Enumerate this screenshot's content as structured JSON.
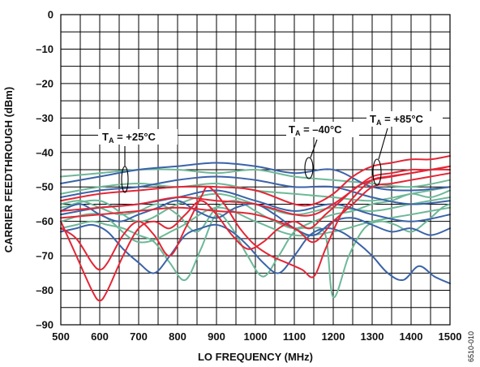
{
  "chart_data": {
    "type": "line",
    "title": "",
    "xlabel": "LO FREQUENCY (MHz)",
    "ylabel": "CARRIER FEEDTHROUGH (dBm)",
    "xlim": [
      500,
      1500
    ],
    "ylim": [
      -90,
      0
    ],
    "x_ticks": [
      500,
      600,
      700,
      800,
      900,
      1000,
      1100,
      1200,
      1300,
      1400,
      1500
    ],
    "x_tick_labels": [
      "500",
      "600",
      "700",
      "800",
      "900",
      "1000",
      "1100",
      "1200",
      "1300",
      "1400",
      "1500"
    ],
    "y_ticks": [
      0,
      -10,
      -20,
      -30,
      -40,
      -50,
      -60,
      -70,
      -80,
      -90
    ],
    "y_tick_labels": [
      "0",
      "–10",
      "–20",
      "–30",
      "–40",
      "–50",
      "–60",
      "–70",
      "–80",
      "–90"
    ],
    "grid": true,
    "series": [
      {
        "name": "TA = +25°C",
        "color": "#6db898",
        "curves": [
          {
            "x": [
              500,
              600,
              700,
              800,
              900,
              1000,
              1100,
              1200,
              1300,
              1400,
              1500
            ],
            "y": [
              -47,
              -46,
              -45,
              -45,
              -46,
              -45,
              -47,
              -48,
              -49,
              -50,
              -48
            ]
          },
          {
            "x": [
              500,
              600,
              700,
              800,
              900,
              1000,
              1100,
              1200,
              1300,
              1400,
              1500
            ],
            "y": [
              -52,
              -50,
              -49,
              -50,
              -49,
              -51,
              -52,
              -53,
              -54,
              -52,
              -50
            ]
          },
          {
            "x": [
              500,
              600,
              700,
              800,
              900,
              1000,
              1100,
              1200,
              1300,
              1400,
              1500
            ],
            "y": [
              -56,
              -54,
              -60,
              -55,
              -52,
              -55,
              -58,
              -56,
              -57,
              -55,
              -53
            ]
          },
          {
            "x": [
              500,
              600,
              700,
              800,
              900,
              1000,
              1100,
              1200,
              1300,
              1400,
              1500
            ],
            "y": [
              -60,
              -58,
              -66,
              -62,
              -56,
              -60,
              -64,
              -63,
              -60,
              -58,
              -56
            ]
          },
          {
            "x": [
              500,
              540,
              580,
              620,
              660,
              700,
              740,
              780,
              820,
              860,
              900,
              940,
              980,
              1020,
              1060,
              1100,
              1140,
              1180,
              1200,
              1240,
              1280,
              1320,
              1360,
              1400,
              1440,
              1480,
              1500
            ],
            "y": [
              -62,
              -61,
              -60,
              -61,
              -62,
              -64,
              -66,
              -72,
              -77,
              -68,
              -58,
              -62,
              -70,
              -76,
              -70,
              -63,
              -62,
              -64,
              -82,
              -70,
              -62,
              -60,
              -61,
              -63,
              -60,
              -56,
              -55
            ]
          },
          {
            "x": [
              500,
              550,
              600,
              650,
              700,
              750,
              800,
              850,
              900,
              950,
              1000,
              1050,
              1100,
              1150,
              1200,
              1250,
              1300,
              1350,
              1400,
              1450,
              1500
            ],
            "y": [
              -55,
              -54,
              -56,
              -58,
              -57,
              -55,
              -58,
              -63,
              -56,
              -54,
              -57,
              -60,
              -62,
              -60,
              -58,
              -57,
              -55,
              -54,
              -52,
              -53,
              -51
            ]
          }
        ]
      },
      {
        "name": "TA = –40°C",
        "color": "#3b63a8",
        "curves": [
          {
            "x": [
              500,
              600,
              700,
              800,
              900,
              1000,
              1100,
              1200,
              1300,
              1400,
              1500
            ],
            "y": [
              -49,
              -47,
              -45,
              -44,
              -43,
              -44,
              -46,
              -45,
              -50,
              -51,
              -50
            ]
          },
          {
            "x": [
              500,
              600,
              700,
              800,
              900,
              1000,
              1100,
              1200,
              1300,
              1400,
              1500
            ],
            "y": [
              -53,
              -51,
              -50,
              -48,
              -47,
              -48,
              -50,
              -50,
              -53,
              -55,
              -54
            ]
          },
          {
            "x": [
              500,
              600,
              700,
              800,
              900,
              1000,
              1100,
              1200,
              1300,
              1400,
              1500
            ],
            "y": [
              -58,
              -56,
              -55,
              -53,
              -51,
              -54,
              -57,
              -55,
              -58,
              -60,
              -58
            ]
          },
          {
            "x": [
              500,
              540,
              580,
              620,
              660,
              700,
              740,
              780,
              820,
              860,
              900,
              940,
              980,
              1020,
              1060,
              1100,
              1140,
              1180,
              1220,
              1260,
              1300,
              1340,
              1380,
              1420,
              1460,
              1500
            ],
            "y": [
              -63,
              -62,
              -61,
              -63,
              -68,
              -72,
              -75,
              -70,
              -64,
              -62,
              -61,
              -63,
              -67,
              -72,
              -75,
              -70,
              -64,
              -62,
              -63,
              -66,
              -70,
              -75,
              -77,
              -73,
              -76,
              -78
            ]
          },
          {
            "x": [
              500,
              550,
              600,
              650,
              700,
              750,
              800,
              850,
              900,
              950,
              1000,
              1050,
              1100,
              1150,
              1200,
              1250,
              1300,
              1350,
              1400,
              1450,
              1500
            ],
            "y": [
              -57,
              -55,
              -58,
              -60,
              -58,
              -56,
              -54,
              -57,
              -59,
              -56,
              -55,
              -58,
              -62,
              -64,
              -60,
              -59,
              -61,
              -63,
              -62,
              -64,
              -62
            ]
          }
        ]
      },
      {
        "name": "TA = +85°C",
        "color": "#e32636",
        "curves": [
          {
            "x": [
              500,
              600,
              700,
              800,
              900,
              1000,
              1100,
              1150,
              1200,
              1250,
              1300,
              1350,
              1400,
              1450,
              1500
            ],
            "y": [
              -54,
              -52,
              -51,
              -50,
              -50,
              -51,
              -55,
              -55,
              -52,
              -47,
              -44,
              -43,
              -42,
              -42,
              -41
            ]
          },
          {
            "x": [
              500,
              600,
              700,
              800,
              900,
              1000,
              1100,
              1150,
              1200,
              1250,
              1300,
              1350,
              1400,
              1450,
              1500
            ],
            "y": [
              -57,
              -56,
              -55,
              -53,
              -54,
              -55,
              -58,
              -58,
              -55,
              -51,
              -47,
              -46,
              -45,
              -45,
              -44
            ]
          },
          {
            "x": [
              500,
              540,
              580,
              600,
              620,
              660,
              700,
              740,
              780,
              820,
              860,
              880,
              920,
              960,
              1000,
              1040,
              1080,
              1120,
              1150,
              1180,
              1220,
              1260,
              1300,
              1340,
              1400,
              1450,
              1500
            ],
            "y": [
              -62,
              -65,
              -72,
              -74,
              -72,
              -64,
              -60,
              -64,
              -70,
              -62,
              -53,
              -50,
              -55,
              -62,
              -67,
              -70,
              -72,
              -74,
              -76,
              -68,
              -58,
              -52,
              -48,
              -47,
              -46,
              -45,
              -45
            ]
          },
          {
            "x": [
              500,
              540,
              580,
              600,
              620,
              660,
              700,
              740,
              780,
              820,
              860,
              900,
              940,
              980,
              1020,
              1060,
              1100,
              1140,
              1180,
              1220,
              1260,
              1300,
              1350,
              1400,
              1450,
              1500
            ],
            "y": [
              -60,
              -70,
              -80,
              -83,
              -80,
              -70,
              -62,
              -60,
              -62,
              -58,
              -54,
              -58,
              -64,
              -68,
              -66,
              -62,
              -60,
              -62,
              -58,
              -54,
              -50,
              -48,
              -47,
              -46,
              -45,
              -44
            ]
          },
          {
            "x": [
              500,
              600,
              700,
              800,
              900,
              1000,
              1100,
              1150,
              1200,
              1250,
              1300,
              1350,
              1400,
              1450,
              1500
            ],
            "y": [
              -59,
              -58,
              -57,
              -56,
              -57,
              -58,
              -62,
              -66,
              -60,
              -55,
              -50,
              -49,
              -48,
              -47,
              -46
            ]
          }
        ]
      }
    ],
    "annotations": [
      {
        "base": "T",
        "sub": "A",
        "rest": " = +25°C"
      },
      {
        "base": "T",
        "sub": "A",
        "rest": " = –40°C"
      },
      {
        "base": "T",
        "sub": "A",
        "rest": " = +85°C"
      }
    ]
  },
  "figure_id": "6510-010"
}
